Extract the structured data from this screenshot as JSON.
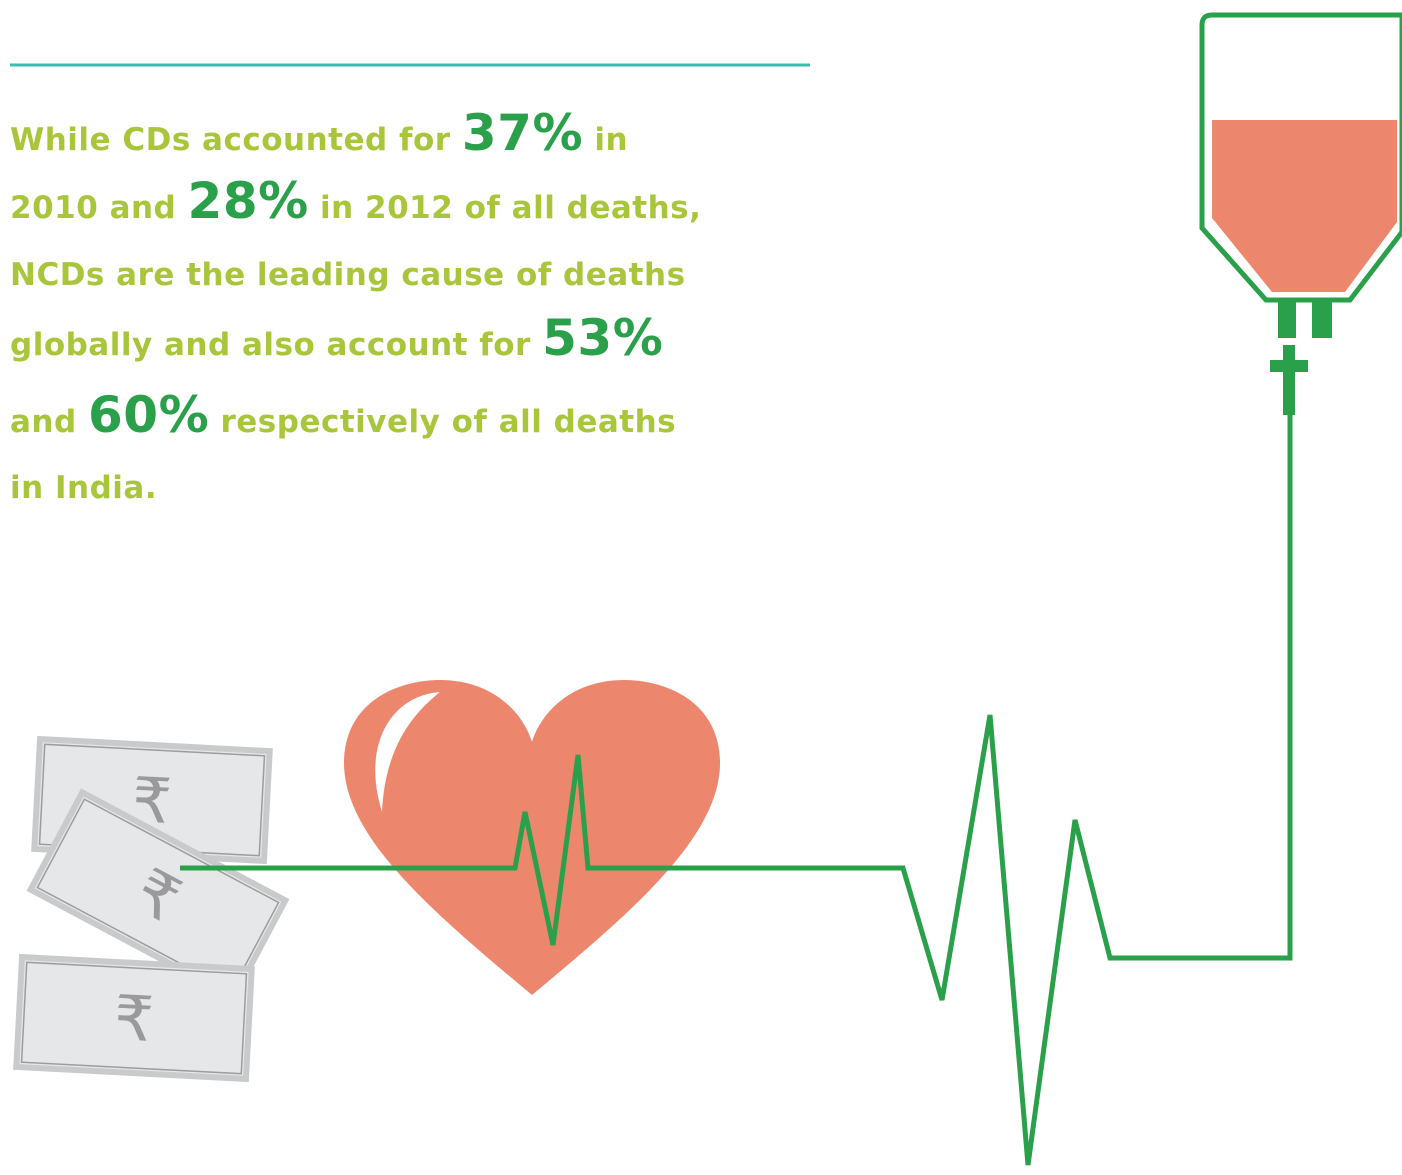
{
  "paragraph": {
    "lines": [
      [
        {
          "text": "While CDs accounted for ",
          "emphasis": false
        },
        {
          "text": "37%",
          "emphasis": true
        },
        {
          "text": " in",
          "emphasis": false
        }
      ],
      [
        {
          "text": "2010 and ",
          "emphasis": false
        },
        {
          "text": "28%",
          "emphasis": true
        },
        {
          "text": " in 2012 of all deaths,",
          "emphasis": false
        }
      ],
      [
        {
          "text": "NCDs are the leading cause of deaths",
          "emphasis": false
        }
      ],
      [
        {
          "text": "globally and also account for ",
          "emphasis": false
        },
        {
          "text": "53%",
          "emphasis": true
        }
      ],
      [
        {
          "text": "and ",
          "emphasis": false
        },
        {
          "text": "60%",
          "emphasis": true
        },
        {
          "text": " respectively of all deaths",
          "emphasis": false
        }
      ],
      [
        {
          "text": "in India.",
          "emphasis": false
        }
      ]
    ]
  },
  "notes": [
    "₹",
    "₹",
    "₹"
  ]
}
